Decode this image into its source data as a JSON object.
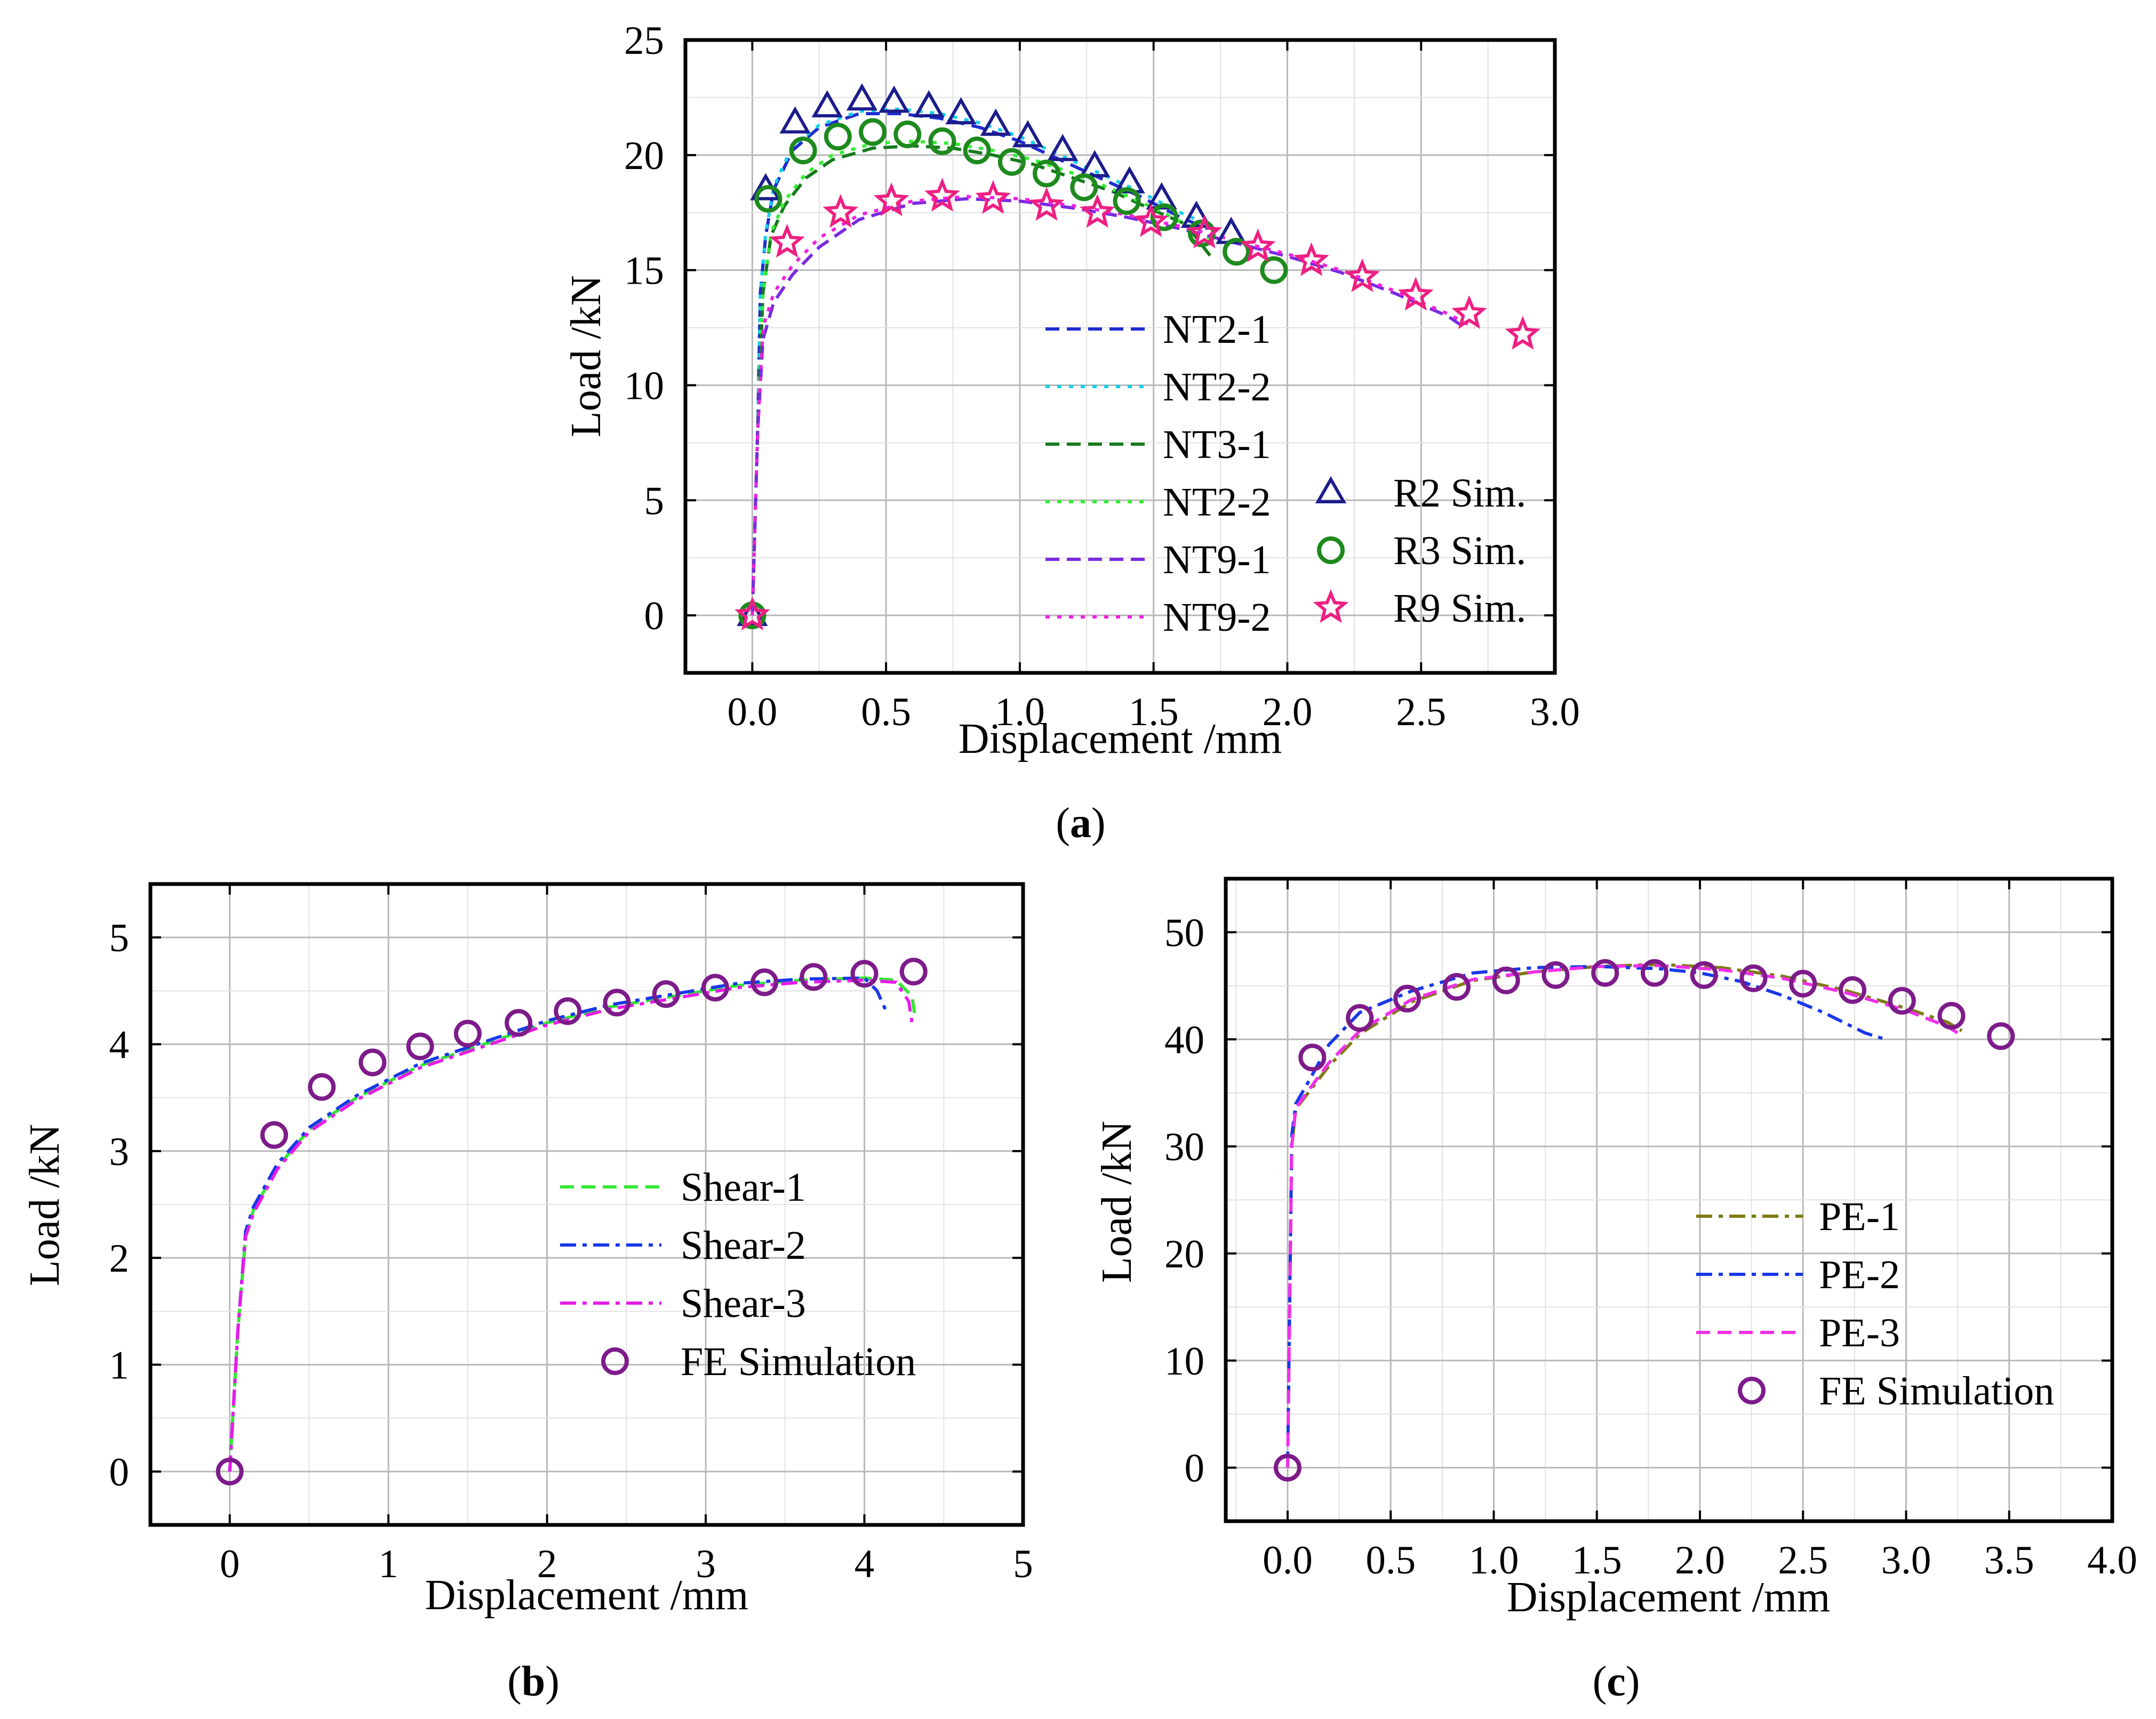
{
  "chart_data": [
    {
      "id": "a",
      "type": "line",
      "caption": "a",
      "xlabel": "Displacement /mm",
      "ylabel": "Load /kN",
      "xlim": [
        -0.25,
        3.0
      ],
      "ylim": [
        -2.5,
        25
      ],
      "xticks": [
        0.0,
        0.5,
        1.0,
        1.5,
        2.0,
        2.5,
        3.0
      ],
      "xtick_labels": [
        "0.0",
        "0.5",
        "1.0",
        "1.5",
        "2.0",
        "2.5",
        "3.0"
      ],
      "yticks": [
        0,
        5,
        10,
        15,
        20,
        25
      ],
      "ytick_labels": [
        "0",
        "5",
        "10",
        "15",
        "20",
        "25"
      ],
      "grid": true,
      "series": [
        {
          "name": "NT2-1",
          "color": "#1f2ccf",
          "style": "dash",
          "x": [
            0,
            0.02,
            0.03,
            0.05,
            0.08,
            0.15,
            0.25,
            0.4,
            0.55,
            0.7,
            0.85,
            1.0,
            1.15,
            1.3,
            1.45,
            1.6,
            1.7
          ],
          "y": [
            0,
            8,
            14,
            16.5,
            18.5,
            20.2,
            21.2,
            21.8,
            21.8,
            21.6,
            21.2,
            20.6,
            19.8,
            19.0,
            18.2,
            17.3,
            16.8
          ]
        },
        {
          "name": "NT2-2",
          "color": "#13d0e8",
          "style": "dot",
          "x": [
            0,
            0.02,
            0.03,
            0.05,
            0.08,
            0.15,
            0.25,
            0.4,
            0.55,
            0.7,
            0.85,
            1.0,
            1.15,
            1.3,
            1.45,
            1.6,
            1.72
          ],
          "y": [
            0,
            8,
            14,
            16.6,
            18.6,
            20.4,
            21.3,
            21.9,
            22.0,
            21.8,
            21.4,
            20.8,
            20.0,
            19.2,
            18.4,
            17.5,
            16.9
          ]
        },
        {
          "name": "NT3-1",
          "color": "#157a1c",
          "style": "dash",
          "x": [
            0,
            0.02,
            0.04,
            0.07,
            0.12,
            0.2,
            0.3,
            0.45,
            0.6,
            0.75,
            0.9,
            1.05,
            1.2,
            1.35,
            1.5,
            1.62,
            1.72
          ],
          "y": [
            0,
            8,
            14,
            16.5,
            17.8,
            19.0,
            19.8,
            20.3,
            20.4,
            20.3,
            20.0,
            19.6,
            19.0,
            18.4,
            17.6,
            17.0,
            15.5
          ]
        },
        {
          "name": "NT2-2",
          "color": "#2ff02f",
          "style": "dot",
          "x": [
            0,
            0.02,
            0.04,
            0.07,
            0.12,
            0.2,
            0.3,
            0.45,
            0.6,
            0.75,
            0.9,
            1.05,
            1.2,
            1.35,
            1.5,
            1.62,
            1.72
          ],
          "y": [
            0,
            8,
            14,
            16.6,
            18.0,
            19.2,
            20.0,
            20.5,
            20.6,
            20.5,
            20.2,
            19.8,
            19.2,
            18.5,
            17.7,
            17.0,
            16.3
          ]
        },
        {
          "name": "NT9-1",
          "color": "#7a2be0",
          "style": "dash",
          "x": [
            0,
            0.02,
            0.04,
            0.08,
            0.15,
            0.25,
            0.4,
            0.6,
            0.8,
            1.0,
            1.2,
            1.4,
            1.6,
            1.8,
            2.0,
            2.2,
            2.4,
            2.6,
            2.65
          ],
          "y": [
            0,
            8,
            12,
            13.6,
            14.8,
            16.0,
            17.2,
            17.9,
            18.1,
            18.0,
            17.7,
            17.3,
            16.8,
            16.2,
            15.6,
            14.9,
            14.0,
            13.0,
            12.6
          ]
        },
        {
          "name": "NT9-2",
          "color": "#f020e0",
          "style": "dot",
          "x": [
            0,
            0.02,
            0.04,
            0.08,
            0.15,
            0.25,
            0.4,
            0.6,
            0.8,
            1.0,
            1.2,
            1.4,
            1.6,
            1.8,
            2.0,
            2.2,
            2.4,
            2.6,
            2.7
          ],
          "y": [
            0,
            8,
            12.5,
            14.0,
            15.2,
            16.4,
            17.4,
            18.0,
            18.2,
            18.1,
            17.8,
            17.4,
            16.9,
            16.3,
            15.7,
            15.0,
            14.1,
            13.1,
            12.5
          ]
        }
      ],
      "markers": [
        {
          "name": "R2 Sim.",
          "symbol": "triangle",
          "color": "#1c1c8c",
          "x": [
            0,
            0.05,
            0.16,
            0.28,
            0.41,
            0.53,
            0.66,
            0.78,
            0.91,
            1.03,
            1.16,
            1.28,
            1.41,
            1.53,
            1.66,
            1.79
          ],
          "y": [
            0,
            18.5,
            21.4,
            22.1,
            22.4,
            22.3,
            22.1,
            21.8,
            21.3,
            20.8,
            20.2,
            19.5,
            18.8,
            18.1,
            17.3,
            16.6
          ]
        },
        {
          "name": "R3 Sim.",
          "symbol": "circle",
          "color": "#1e8a1e",
          "x": [
            0,
            0.06,
            0.19,
            0.32,
            0.45,
            0.58,
            0.71,
            0.84,
            0.97,
            1.1,
            1.24,
            1.4,
            1.54,
            1.68,
            1.81,
            1.95
          ],
          "y": [
            0,
            18.1,
            20.2,
            20.8,
            21.0,
            20.9,
            20.6,
            20.2,
            19.7,
            19.2,
            18.6,
            18.0,
            17.3,
            16.6,
            15.8,
            15.0
          ]
        },
        {
          "name": "R9 Sim.",
          "symbol": "star",
          "color": "#ee1f82",
          "x": [
            0,
            0.13,
            0.33,
            0.52,
            0.71,
            0.9,
            1.1,
            1.29,
            1.49,
            1.69,
            1.89,
            2.09,
            2.28,
            2.48,
            2.68,
            2.88
          ],
          "y": [
            0,
            16.2,
            17.5,
            18.0,
            18.2,
            18.1,
            17.8,
            17.5,
            17.1,
            16.6,
            16.0,
            15.4,
            14.7,
            13.9,
            13.1,
            12.2
          ]
        }
      ]
    },
    {
      "id": "b",
      "type": "line",
      "caption": "b",
      "xlabel": "Displacement /mm",
      "ylabel": "Load /kN",
      "xlim": [
        -0.5,
        5
      ],
      "ylim": [
        -0.5,
        5.5
      ],
      "xticks": [
        0,
        1,
        2,
        3,
        4,
        5
      ],
      "xtick_labels": [
        "0",
        "1",
        "2",
        "3",
        "4",
        "5"
      ],
      "yticks": [
        0,
        1,
        2,
        3,
        4,
        5
      ],
      "ytick_labels": [
        "0",
        "1",
        "2",
        "3",
        "4",
        "5"
      ],
      "grid": true,
      "series": [
        {
          "name": "Shear-1",
          "color": "#33e833",
          "style": "dash",
          "x": [
            0,
            0.05,
            0.1,
            0.15,
            0.3,
            0.5,
            0.8,
            1.2,
            1.6,
            2.0,
            2.4,
            2.8,
            3.2,
            3.6,
            4.0,
            4.2,
            4.3,
            4.32
          ],
          "y": [
            0,
            1.3,
            2.2,
            2.45,
            2.85,
            3.2,
            3.5,
            3.8,
            4.0,
            4.2,
            4.35,
            4.45,
            4.55,
            4.6,
            4.62,
            4.6,
            4.45,
            4.25
          ]
        },
        {
          "name": "Shear-2",
          "color": "#1838e8",
          "style": "dashdot",
          "x": [
            0,
            0.05,
            0.1,
            0.15,
            0.3,
            0.5,
            0.8,
            1.2,
            1.6,
            2.0,
            2.4,
            2.8,
            3.2,
            3.6,
            4.0,
            4.08,
            4.14
          ],
          "y": [
            0,
            1.3,
            2.25,
            2.48,
            2.88,
            3.22,
            3.52,
            3.82,
            4.02,
            4.22,
            4.37,
            4.47,
            4.57,
            4.61,
            4.62,
            4.5,
            4.3
          ]
        },
        {
          "name": "Shear-3",
          "color": "#e81ae8",
          "style": "dashdot",
          "x": [
            0,
            0.05,
            0.1,
            0.15,
            0.3,
            0.5,
            0.8,
            1.2,
            1.6,
            2.0,
            2.4,
            2.8,
            3.2,
            3.6,
            4.0,
            4.2,
            4.28,
            4.3
          ],
          "y": [
            0,
            1.3,
            2.2,
            2.42,
            2.83,
            3.18,
            3.48,
            3.78,
            3.98,
            4.18,
            4.33,
            4.43,
            4.53,
            4.58,
            4.6,
            4.58,
            4.4,
            4.2
          ]
        }
      ],
      "markers": [
        {
          "name": "FE Simulation",
          "symbol": "circle",
          "color": "#7d1b8a",
          "x": [
            0,
            0.28,
            0.58,
            0.9,
            1.2,
            1.5,
            1.82,
            2.13,
            2.44,
            2.75,
            3.06,
            3.37,
            3.68,
            4.0,
            4.31
          ],
          "y": [
            0,
            3.15,
            3.6,
            3.83,
            3.98,
            4.1,
            4.2,
            4.31,
            4.39,
            4.47,
            4.53,
            4.58,
            4.63,
            4.66,
            4.68
          ]
        }
      ]
    },
    {
      "id": "c",
      "type": "line",
      "caption": "c",
      "xlabel": "Displacement /mm",
      "ylabel": "Load /kN",
      "xlim": [
        -0.3,
        4.0
      ],
      "ylim": [
        -5,
        55
      ],
      "xticks": [
        0.0,
        0.5,
        1.0,
        1.5,
        2.0,
        2.5,
        3.0,
        3.5,
        4.0
      ],
      "xtick_labels": [
        "0.0",
        "0.5",
        "1.0",
        "1.5",
        "2.0",
        "2.5",
        "3.0",
        "3.5",
        "4.0"
      ],
      "yticks": [
        0,
        10,
        20,
        30,
        40,
        50
      ],
      "ytick_labels": [
        "0",
        "10",
        "20",
        "30",
        "40",
        "50"
      ],
      "grid": true,
      "series": [
        {
          "name": "PE-1",
          "color": "#7f7a12",
          "style": "dashdot",
          "x": [
            0,
            0.01,
            0.02,
            0.04,
            0.1,
            0.2,
            0.35,
            0.6,
            0.9,
            1.2,
            1.5,
            1.8,
            2.1,
            2.4,
            2.7,
            3.0,
            3.2,
            3.27
          ],
          "y": [
            0,
            15,
            30,
            33.5,
            35,
            37.5,
            40.5,
            43.5,
            45.5,
            46.3,
            46.8,
            47.0,
            46.7,
            45.9,
            44.6,
            42.9,
            41.6,
            40.8
          ]
        },
        {
          "name": "PE-2",
          "color": "#1838e8",
          "style": "dashdot",
          "x": [
            0,
            0.01,
            0.02,
            0.04,
            0.1,
            0.2,
            0.35,
            0.6,
            0.9,
            1.2,
            1.5,
            1.8,
            2.0,
            2.2,
            2.4,
            2.6,
            2.8,
            2.9
          ],
          "y": [
            0,
            15,
            31,
            34,
            36,
            39.5,
            42.5,
            44.5,
            46.2,
            46.7,
            46.8,
            46.6,
            46.2,
            45.4,
            44.1,
            42.5,
            40.6,
            40.0
          ]
        },
        {
          "name": "PE-3",
          "color": "#f030e8",
          "style": "dash",
          "x": [
            0,
            0.01,
            0.02,
            0.04,
            0.1,
            0.2,
            0.35,
            0.6,
            0.9,
            1.2,
            1.5,
            1.8,
            2.1,
            2.4,
            2.7,
            3.0,
            3.2,
            3.25
          ],
          "y": [
            0,
            15,
            30,
            33.6,
            35.2,
            37.8,
            40.8,
            43.7,
            45.6,
            46.3,
            46.8,
            46.9,
            46.5,
            45.7,
            44.4,
            42.7,
            41.2,
            40.6
          ]
        }
      ],
      "markers": [
        {
          "name": "FE Simulation",
          "symbol": "circle",
          "color": "#7d1b8a",
          "x": [
            0,
            0.12,
            0.35,
            0.58,
            0.82,
            1.06,
            1.3,
            1.54,
            1.78,
            2.02,
            2.26,
            2.5,
            2.74,
            2.98,
            3.22,
            3.46
          ],
          "y": [
            0,
            38.3,
            42.0,
            43.8,
            44.9,
            45.5,
            46.0,
            46.2,
            46.2,
            46.0,
            45.7,
            45.2,
            44.6,
            43.6,
            42.2,
            40.3
          ]
        }
      ]
    }
  ]
}
